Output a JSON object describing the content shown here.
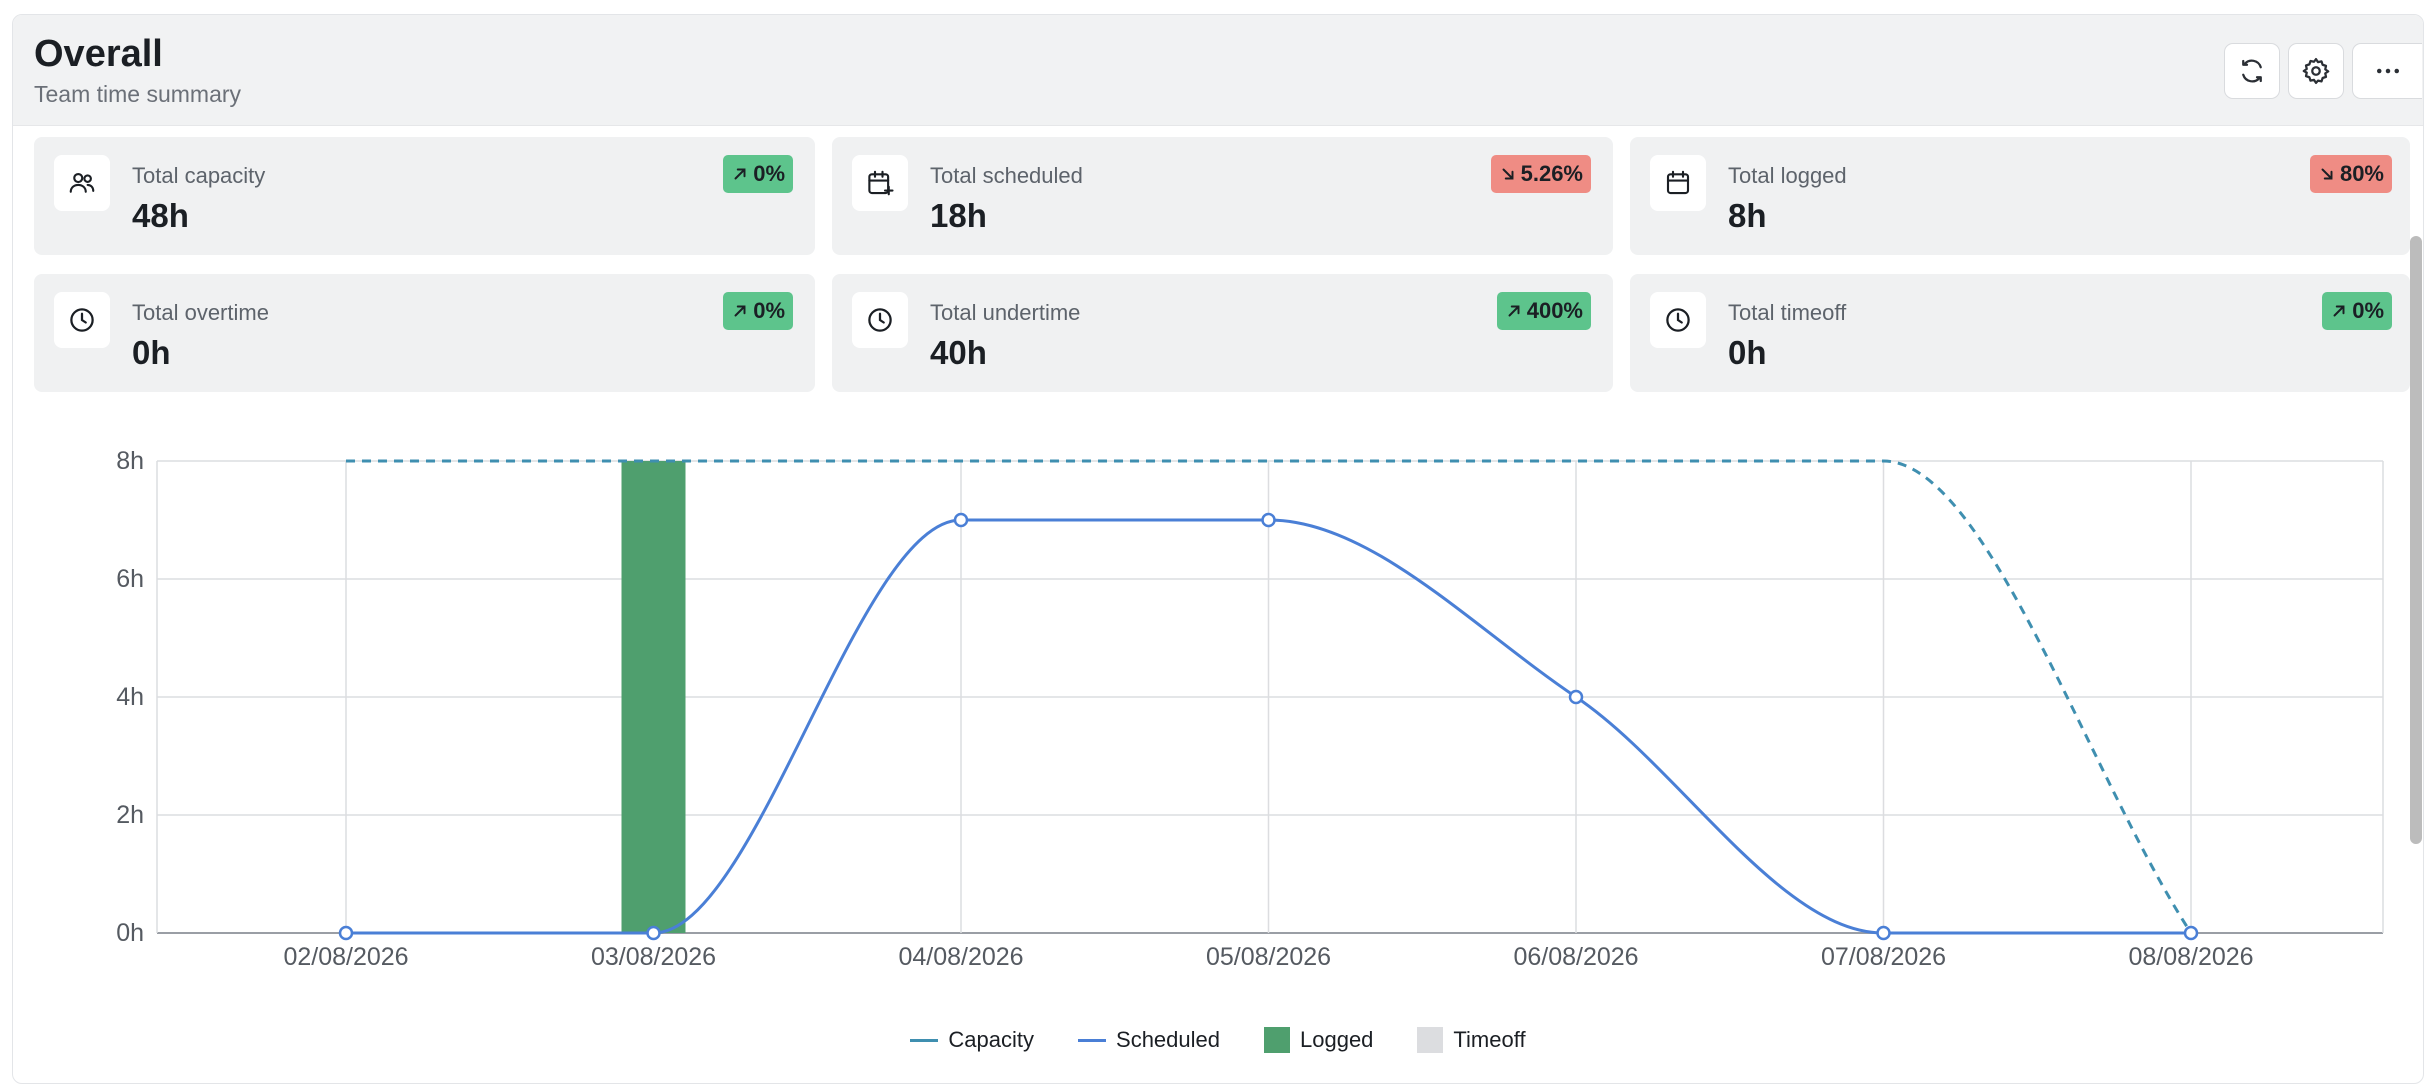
{
  "header": {
    "title": "Overall",
    "subtitle": "Team time summary",
    "buttons": [
      "refresh-icon",
      "gear-icon",
      "more-icon"
    ]
  },
  "cards": [
    {
      "label": "Total capacity",
      "value": "48h",
      "trend": "0%",
      "direction": "up",
      "icon": "users-icon"
    },
    {
      "label": "Total scheduled",
      "value": "18h",
      "trend": "5.26%",
      "direction": "down",
      "icon": "calendar-plus-icon"
    },
    {
      "label": "Total logged",
      "value": "8h",
      "trend": "80%",
      "direction": "down",
      "icon": "calendar-icon"
    },
    {
      "label": "Total overtime",
      "value": "0h",
      "trend": "0%",
      "direction": "up",
      "icon": "clock-icon"
    },
    {
      "label": "Total undertime",
      "value": "40h",
      "trend": "400%",
      "direction": "up",
      "icon": "clock-icon"
    },
    {
      "label": "Total timeoff",
      "value": "0h",
      "trend": "0%",
      "direction": "up",
      "icon": "clock-icon"
    }
  ],
  "colors": {
    "up_badge": "#5dc48c",
    "down_badge": "#ef8c84",
    "capacity": "#3f8fb0",
    "scheduled": "#4a7fd6",
    "logged": "#4f9f6e",
    "timeoff": "#dcdde0"
  },
  "chart_data": {
    "type": "line",
    "categories": [
      "02/08/2026",
      "03/08/2026",
      "04/08/2026",
      "05/08/2026",
      "06/08/2026",
      "07/08/2026",
      "08/08/2026"
    ],
    "y_ticks": [
      "0h",
      "2h",
      "4h",
      "6h",
      "8h"
    ],
    "ylim": [
      0,
      8
    ],
    "grid": true,
    "legend_position": "bottom",
    "series": [
      {
        "name": "Capacity",
        "type": "line",
        "style": "dashed",
        "values": [
          8,
          8,
          8,
          8,
          8,
          8,
          0
        ]
      },
      {
        "name": "Scheduled",
        "type": "line",
        "style": "solid",
        "values": [
          0,
          0,
          7,
          7,
          4,
          0,
          0
        ]
      },
      {
        "name": "Logged",
        "type": "bar",
        "values": [
          0,
          8,
          0,
          0,
          0,
          0,
          0
        ]
      },
      {
        "name": "Timeoff",
        "type": "bar",
        "values": [
          0,
          0,
          0,
          0,
          0,
          0,
          0
        ]
      }
    ]
  }
}
